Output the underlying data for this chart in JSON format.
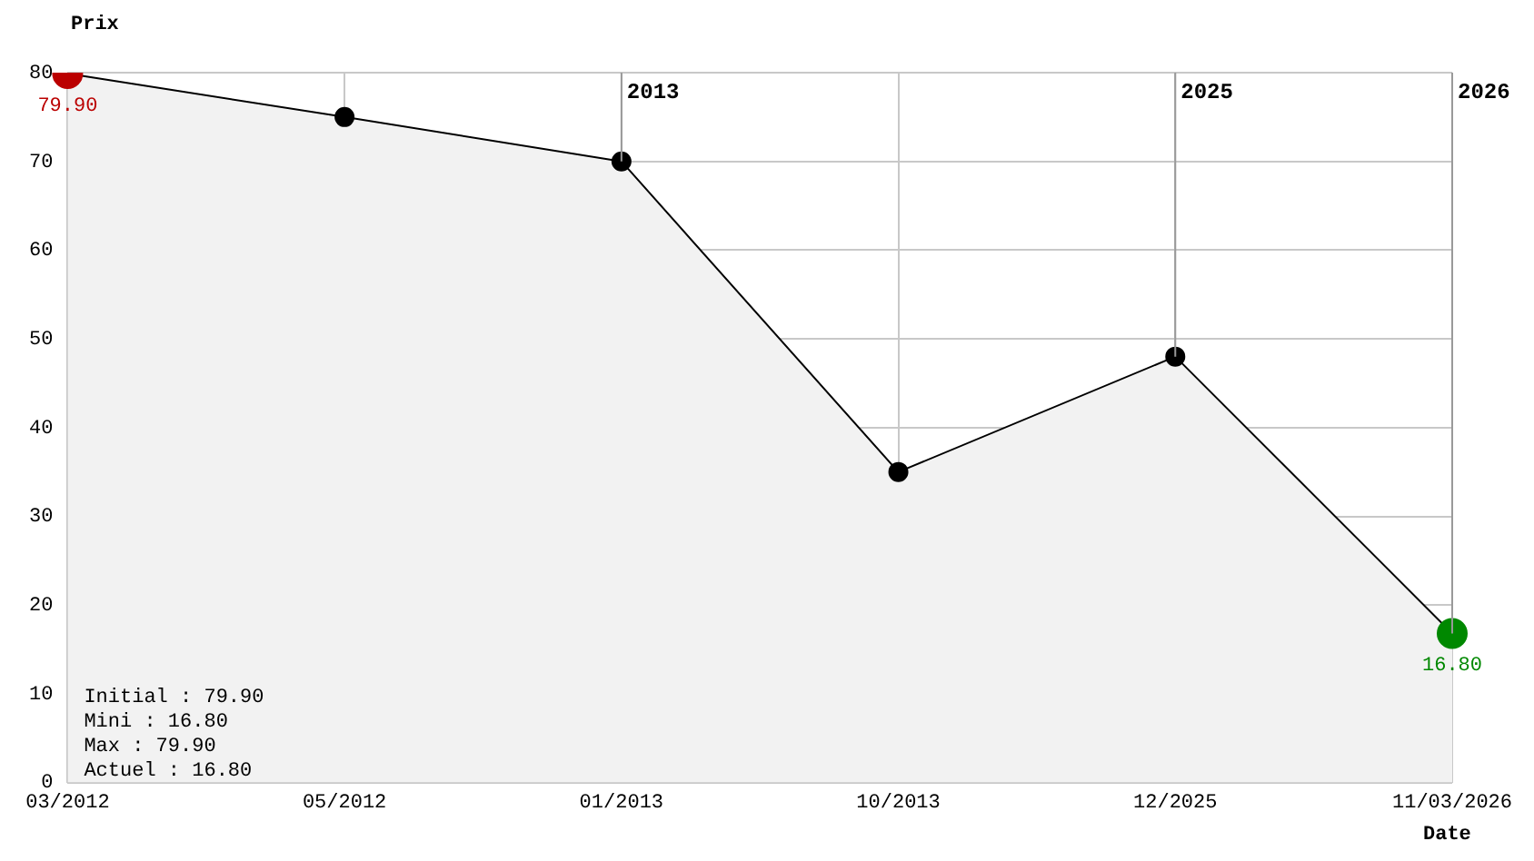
{
  "chart_data": {
    "type": "area",
    "xlabel": "Date",
    "ylabel": "Prix",
    "categories": [
      "03/2012",
      "05/2012",
      "01/2013",
      "10/2013",
      "12/2025",
      "11/03/2026"
    ],
    "series": [
      {
        "color": "#000000",
        "colors": [
          "#bb0000",
          "#000000",
          "#000000",
          "#000000",
          "#000000",
          "#008800"
        ],
        "values": [
          79.9,
          75,
          70,
          35,
          48,
          16.8
        ],
        "value_labels": [
          "79.90",
          null,
          null,
          null,
          null,
          "16.80"
        ]
      }
    ],
    "ylim": [
      0,
      80
    ],
    "yticks": [
      0,
      10,
      20,
      30,
      40,
      50,
      60,
      70,
      80
    ],
    "grid": true,
    "legend": false,
    "marker": "circle",
    "ref_lines": [
      {
        "axis": "x",
        "value": "01/2013",
        "label": "2013"
      },
      {
        "axis": "x",
        "value": "12/2025",
        "label": "2025"
      },
      {
        "axis": "x",
        "value": "11/03/2026",
        "label": "2026"
      }
    ],
    "annotations": [
      "Initial : 79.90",
      "Mini : 16.80",
      "Max : 79.90",
      "Actuel : 16.80"
    ]
  }
}
